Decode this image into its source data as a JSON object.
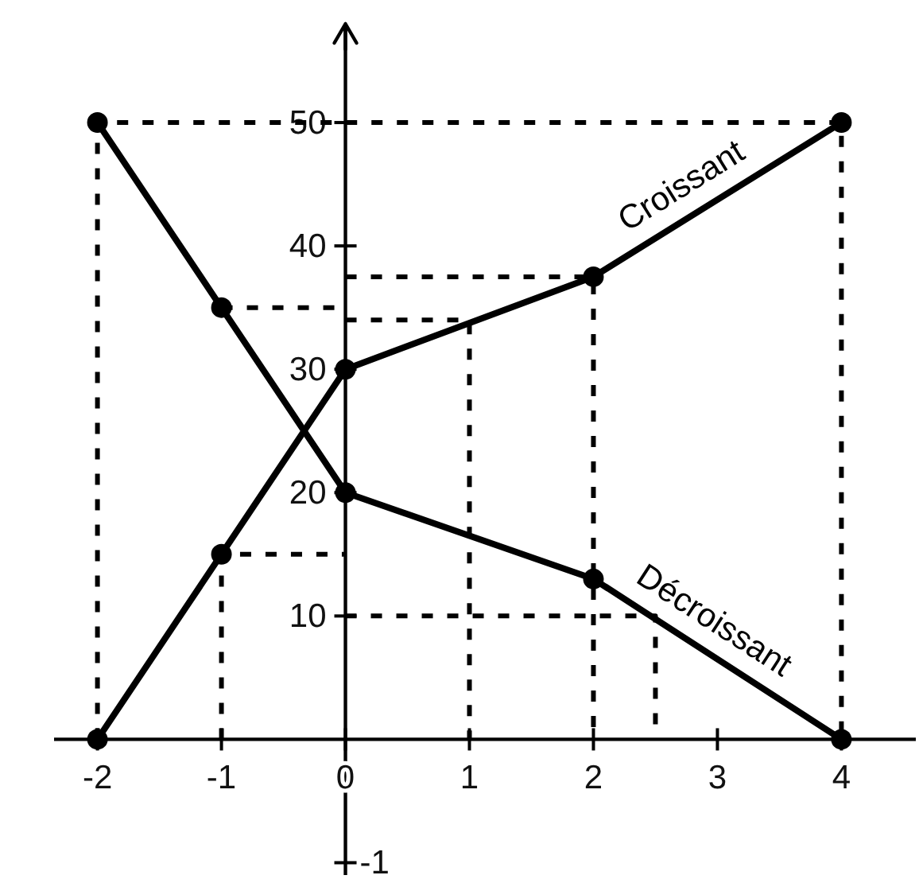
{
  "chart_data": {
    "type": "line",
    "xlim": [
      -2.35,
      4.6
    ],
    "ylim": [
      -11,
      58
    ],
    "xticks": [
      -2,
      -1,
      0,
      1,
      2,
      3,
      4
    ],
    "yticks": [
      {
        "value": -10,
        "label": null
      },
      10,
      20,
      30,
      40,
      50
    ],
    "annotations": [
      "-1"
    ],
    "marker": "circle",
    "series": [
      {
        "name": "Croissant",
        "color": "#000000",
        "x": [
          -2,
          -1,
          0,
          2,
          4
        ],
        "values": [
          0,
          15,
          30,
          37.5,
          50
        ]
      },
      {
        "name": "Décroissant",
        "color": "#000000",
        "x": [
          -2,
          -1,
          0,
          2,
          4
        ],
        "values": [
          50,
          35,
          20,
          13,
          0
        ]
      },
      {
        "color": "#000000",
        "marker": "none",
        "line_style": "dashed",
        "x": [
          -2,
          -2,
          4,
          4,
          null,
          -1,
          -1,
          0,
          null,
          -1,
          0,
          null,
          0,
          2,
          2,
          null,
          0,
          1,
          1,
          null,
          0,
          2.5,
          2.5
        ],
        "values": [
          0,
          50,
          50,
          0,
          null,
          0,
          15,
          15,
          null,
          35,
          35,
          null,
          37.5,
          37.5,
          0,
          null,
          34,
          34,
          0,
          null,
          10,
          10,
          0
        ]
      }
    ]
  }
}
